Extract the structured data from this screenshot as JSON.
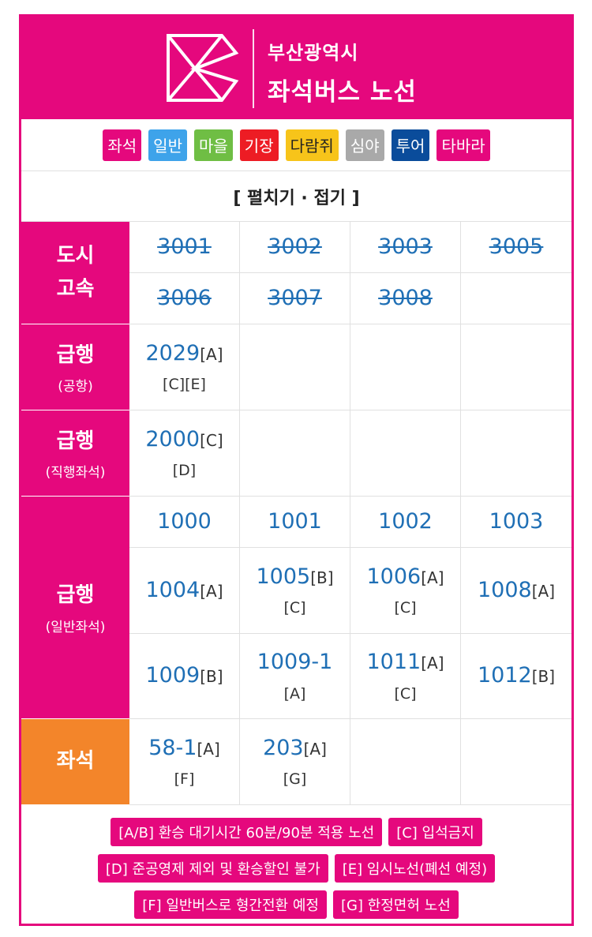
{
  "header": {
    "title_line1": "부산광역시",
    "title_line2": "좌석버스 노선"
  },
  "route_types": [
    {
      "label": "좌석",
      "color": "#e5087d"
    },
    {
      "label": "일반",
      "color": "#3ea3ea"
    },
    {
      "label": "마을",
      "color": "#6fbe44"
    },
    {
      "label": "기장",
      "color": "#ed1c24"
    },
    {
      "label": "다람쥐",
      "color": "#f7c41a"
    },
    {
      "label": "심야",
      "color": "#a9a9a9"
    },
    {
      "label": "투어",
      "color": "#0a4c9b"
    },
    {
      "label": "타바라",
      "color": "#e5087d"
    }
  ],
  "toggle_label": "[ 펼치기 · 접기 ]",
  "categories": {
    "city_express": {
      "line1": "도시",
      "line2": "고속"
    },
    "express_airport": {
      "main": "급행",
      "sub": "(공항)"
    },
    "express_direct": {
      "main": "급행",
      "sub": "(직행좌석)"
    },
    "express_general": {
      "main": "급행",
      "sub": "(일반좌석)"
    },
    "seat": {
      "main": "좌석"
    }
  },
  "routes": {
    "r3001": "3001",
    "r3002": "3002",
    "r3003": "3003",
    "r3005": "3005",
    "r3006": "3006",
    "r3007": "3007",
    "r3008": "3008",
    "r2029": "2029",
    "r2029_m": "[A]",
    "r2029_n": "[C][E]",
    "r2000": "2000",
    "r2000_m": "[C]",
    "r2000_n": "[D]",
    "r1000": "1000",
    "r1001": "1001",
    "r1002": "1002",
    "r1003": "1003",
    "r1004": "1004",
    "r1004_m": "[A]",
    "r1005": "1005",
    "r1005_m": "[B]",
    "r1005_n": "[C]",
    "r1006": "1006",
    "r1006_m": "[A]",
    "r1006_n": "[C]",
    "r1008": "1008",
    "r1008_m": "[A]",
    "r1009": "1009",
    "r1009_m": "[B]",
    "r1009_1": "1009-1",
    "r1009_1_n": "[A]",
    "r1011": "1011",
    "r1011_m": "[A]",
    "r1011_n": "[C]",
    "r1012": "1012",
    "r1012_m": "[B]",
    "r58_1": "58-1",
    "r58_1_m": "[A]",
    "r58_1_n": "[F]",
    "r203": "203",
    "r203_m": "[A]",
    "r203_n": "[G]"
  },
  "legend": [
    "[A/B] 환승 대기시간 60분/90분 적용 노선",
    "[C] 입석금지",
    "[D] 준공영제 제외 및 환승할인 불가",
    "[E] 임시노선(폐선 예정)",
    "[F] 일반버스로 형간전환 예정",
    "[G] 한정면허 노선"
  ]
}
